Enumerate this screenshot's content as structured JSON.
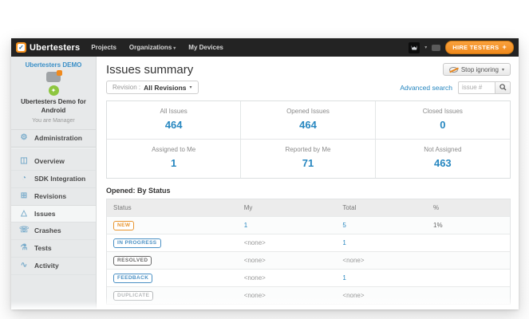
{
  "topbar": {
    "brand": "Ubertesters",
    "nav": [
      {
        "label": "Projects",
        "has_caret": false
      },
      {
        "label": "Organizations",
        "has_caret": true
      },
      {
        "label": "My Devices",
        "has_caret": false
      }
    ],
    "hire_button": "HIRE TESTERS",
    "hire_plus": "+"
  },
  "sidebar": {
    "project_link": "Ubertesters DEMO",
    "project_title": "Ubertesters Demo for Android",
    "project_role": "You are Manager",
    "admin_item": {
      "label": "Administration",
      "icon": "gear-icon"
    },
    "items": [
      {
        "label": "Overview",
        "icon": "overview-icon",
        "active": false
      },
      {
        "label": "SDK Integration",
        "icon": "gauge-icon",
        "active": false
      },
      {
        "label": "Revisions",
        "icon": "grid-icon",
        "active": false
      },
      {
        "label": "Issues",
        "icon": "warning-triangle-icon",
        "active": true
      },
      {
        "label": "Crashes",
        "icon": "crash-phone-icon",
        "active": false
      },
      {
        "label": "Tests",
        "icon": "flask-icon",
        "active": false
      },
      {
        "label": "Activity",
        "icon": "activity-chart-icon",
        "active": false
      }
    ]
  },
  "header": {
    "title": "Issues summary",
    "revision_label": "Revision :",
    "revision_value": "All Revisions",
    "stop_ignoring": "Stop ignoring",
    "advanced_search": "Advanced search",
    "issue_placeholder": "issue #"
  },
  "stats": {
    "cards": [
      {
        "label": "All Issues",
        "value": "464"
      },
      {
        "label": "Opened Issues",
        "value": "464"
      },
      {
        "label": "Closed Issues",
        "value": "0"
      },
      {
        "label": "Assigned to Me",
        "value": "1"
      },
      {
        "label": "Reported by Me",
        "value": "71"
      },
      {
        "label": "Not Assigned",
        "value": "463"
      }
    ],
    "accent_color": "#2787c0"
  },
  "table": {
    "title": "Opened: By Status",
    "columns": [
      "Status",
      "My",
      "Total",
      "%"
    ],
    "rows": [
      {
        "status": "NEW",
        "status_color": "#e8952f",
        "my": "1",
        "total": "5",
        "pct": "1%"
      },
      {
        "status": "IN PROGRESS",
        "status_color": "#4a90c4",
        "my": "<none>",
        "total": "1",
        "pct": ""
      },
      {
        "status": "RESOLVED",
        "status_color": "#6b6b6b",
        "my": "<none>",
        "total": "<none>",
        "pct": ""
      },
      {
        "status": "FEEDBACK",
        "status_color": "#4a90c4",
        "my": "<none>",
        "total": "1",
        "pct": ""
      },
      {
        "status": "DUPLICATE",
        "status_color": "#b4b7b9",
        "my": "<none>",
        "total": "<none>",
        "pct": ""
      }
    ]
  }
}
